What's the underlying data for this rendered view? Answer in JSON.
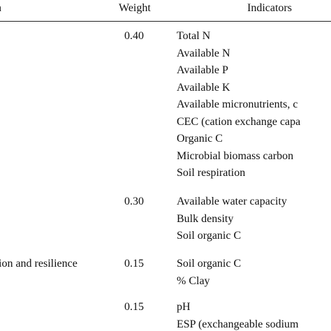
{
  "header": {
    "function": "n",
    "weight": "Weight",
    "indicators": "Indicators"
  },
  "rows": [
    {
      "function": "",
      "weight": "0.40",
      "indicators": [
        "Total N",
        "Available N",
        "Available P",
        "Available K",
        "Available micronutrients, c",
        "CEC (cation exchange capa",
        "Organic C",
        "Microbial biomass carbon",
        "Soil respiration"
      ]
    },
    {
      "function": "",
      "weight": "0.30",
      "indicators": [
        "Available water capacity",
        "Bulk density",
        "Soil organic C"
      ]
    },
    {
      "function": "ion and resilience",
      "weight": "0.15",
      "indicators": [
        "Soil organic C",
        "% Clay"
      ]
    },
    {
      "function": "",
      "weight": "0.15",
      "indicators": [
        "pH",
        "ESP (exchangeable sodium"
      ]
    }
  ]
}
